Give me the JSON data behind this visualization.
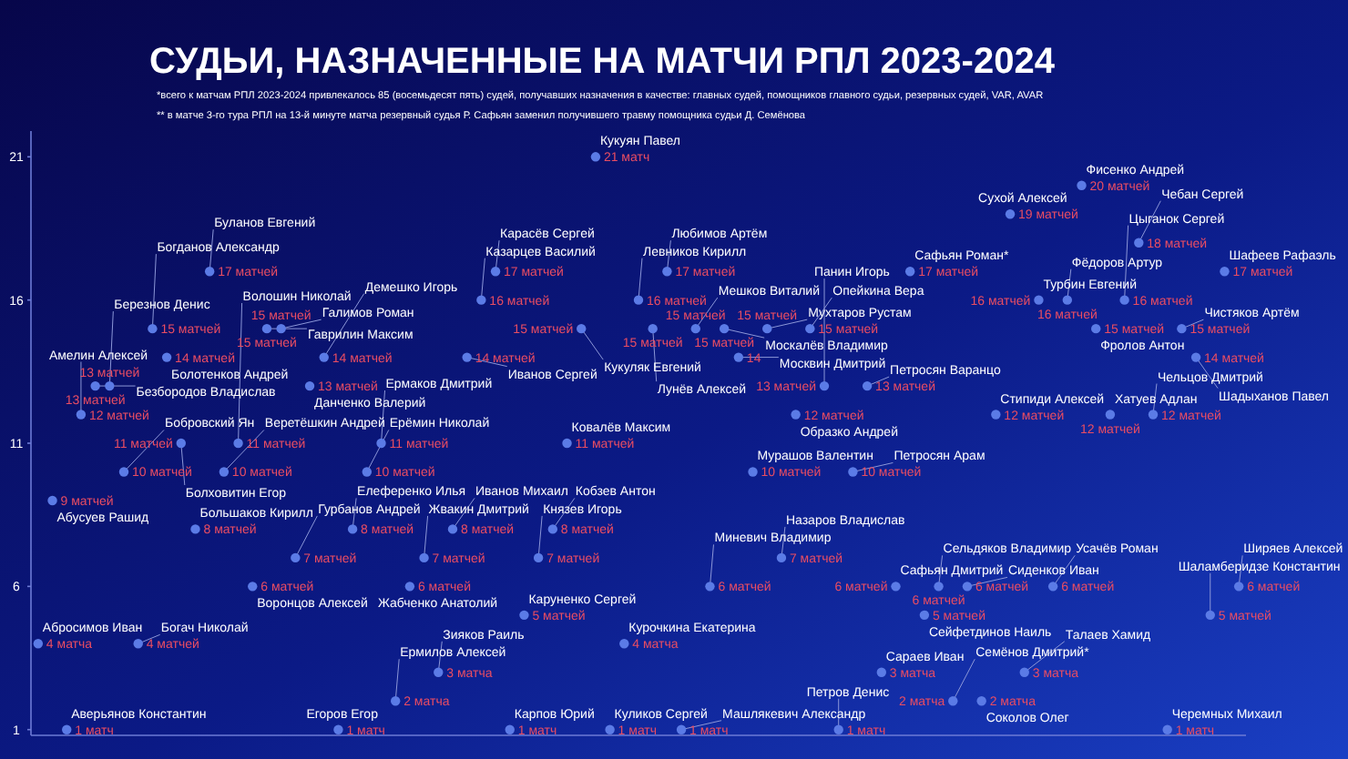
{
  "chart_data": {
    "type": "scatter",
    "title": "СУДЬИ, НАЗНАЧЕННЫЕ НА МАТЧИ РПЛ 2023-2024",
    "annotations": [
      "*всего к матчам РПЛ 2023-2024 привлекалось 85 (восемьдесят пять) судей, получавших назначения в качестве: главных судей, помощников главного судьи, резервных судей, VAR, AVAR",
      "** в матче 3-го тура РПЛ на 13-й минуте матча резервный судья Р. Сафьян заменил получившего травму помощника судьи Д. Семёнова",
      "Абросимов Иван",
      "Абусуев Рашид",
      "Аверьянов Константин",
      "Амелин Алексей",
      "Безбородов Владислав",
      "Березнов Денис",
      "Бобровский Ян",
      "Богач Николай",
      "Богданов Александр",
      "Болотенков Андрей",
      "Болховитин Егор",
      "Большаков Кирилл",
      "Буланов Евгений",
      "Веретёшкин Андрей",
      "Волошин Николай",
      "Воронцов Алексей",
      "Гаврилин Максим",
      "Галимов Роман",
      "Гурбанов Андрей",
      "Данченко Валерий",
      "Демешко Игорь",
      "Егоров Егор",
      "Елеференко Илья",
      "Ерёмин Николай",
      "Ермаков Дмитрий",
      "Ермилов Алексей",
      "Жабченко Анатолий",
      "Жвакин Дмитрий",
      "Зияков Раиль",
      "Иванов Михаил",
      "Иванов Сергей",
      "Казарцев Василий",
      "Карасёв Сергей",
      "Карпов Юрий",
      "Каруненко Сергей",
      "Князев Игорь",
      "Кобзев Антон",
      "Ковалёв Максим",
      "Кукуляк Евгений",
      "Кукуян Павел",
      "Куликов Сергей",
      "Курочкина Екатерина",
      "Левников Кирилл",
      "Лунёв Алексей",
      "Любимов Артём",
      "Машлякевич Александр",
      "Мешков Виталий",
      "Миневич Владимир",
      "Москалёв Владимир",
      "Москвин Дмитрий",
      "Мурашов Валентин",
      "Мухтаров Рустам",
      "Назаров Владислав",
      "Образко Андрей",
      "Опейкина Вера",
      "Панин Игорь",
      "Петров Денис",
      "Петросян Арам",
      "Петросян Варанцо",
      "Сараев Иван",
      "Сафьян Дмитрий",
      "Сафьян Роман*",
      "Сейфетдинов Наиль",
      "Сельдяков Владимир",
      "Семёнов Дмитрий*",
      "Сиденков Иван",
      "Соколов Олег",
      "Стипиди Алексей",
      "Сухой Алексей",
      "Талаев Хамид",
      "Турбин Евгений",
      "Усачёв Роман",
      "Фёдоров Артур",
      "Фисенко Андрей",
      "Фролов Антон",
      "Хатуев Адлан",
      "Цыганок Сергей",
      "Чебан Сергей",
      "Чельцов Дмитрий",
      "Черемных Михаил",
      "Чистяков Артём",
      "Шадыханов Павел",
      "Шаламберидзе Константин",
      "Шафеев Рафаэль",
      "Ширяев Алексей"
    ],
    "categories": [
      null,
      null,
      null,
      null,
      null,
      null,
      null,
      null,
      null,
      null,
      null,
      null,
      null,
      null,
      null,
      null,
      null,
      null,
      null,
      null,
      null,
      null,
      null,
      null,
      null,
      null,
      null,
      null,
      null,
      null,
      null,
      null,
      null,
      null,
      null,
      null,
      null,
      null,
      null,
      null,
      null,
      null,
      null,
      null,
      null,
      null,
      null,
      null,
      null,
      null,
      null,
      null,
      null,
      null,
      null,
      null,
      null,
      null,
      null,
      null,
      null,
      null,
      null,
      null,
      null,
      null,
      null,
      null,
      null,
      null,
      null,
      null,
      null,
      null,
      null,
      null,
      null,
      null,
      null,
      null,
      null,
      null,
      null,
      null,
      null
    ],
    "values": [
      4,
      9,
      1,
      12,
      13,
      13,
      10,
      4,
      15,
      14,
      11,
      8,
      17,
      10,
      11,
      6,
      15,
      15,
      7,
      13,
      14,
      1,
      8,
      10,
      11,
      2,
      6,
      7,
      3,
      8,
      14,
      16,
      17,
      1,
      5,
      7,
      8,
      11,
      15,
      21,
      1,
      4,
      16,
      15,
      17,
      1,
      15,
      6,
      15,
      14,
      10,
      15,
      7,
      12,
      15,
      13,
      1,
      10,
      13,
      3,
      6,
      17,
      5,
      6,
      2,
      6,
      2,
      12,
      19,
      3,
      16,
      6,
      16,
      20,
      15,
      12,
      16,
      18,
      12,
      1,
      15,
      14,
      5,
      17,
      6
    ],
    "value_labels": [
      "4 матча",
      "9 матчей",
      "1 матч",
      "12 матчей",
      "13 матчей",
      "13 матчей",
      "10 матчей",
      "4 матчей",
      "15 матчей",
      "14 матчей",
      "11 матчей",
      "8 матчей",
      "17 матчей",
      "10 матчей",
      "11 матчей",
      "6 матчей",
      "15 матчей",
      "15 матчей",
      "7 матчей",
      "13 матчей",
      "14 матчей",
      "1 матч",
      "8 матчей",
      "10 матчей",
      "11 матчей",
      "2 матча",
      "6 матчей",
      "7 матчей",
      "3 матча",
      "8 матчей",
      "14 матчей",
      "16 матчей",
      "17 матчей",
      "1 матч",
      "5 матчей",
      "7 матчей",
      "8 матчей",
      "11 матчей",
      "15 матчей",
      "21 матч",
      "1 матч",
      "4 матча",
      "16 матчей",
      "15 матчей",
      "17 матчей",
      "1 матч",
      "15 матчей",
      "6 матчей",
      "15 матчей",
      "14",
      "10 матчей",
      "15 матчей",
      "7 матчей",
      "12 матчей",
      "15 матчей",
      "13 матчей",
      "1 матч",
      "10 матчей",
      "13 матчей",
      "3 матча",
      "6 матчей",
      "17 матчей",
      "5 матчей",
      "6 матчей",
      "2 матча",
      "6 матчей",
      "2 матча",
      "12 матчей",
      "19 матчей",
      "3 матча",
      "16 матчей",
      "6 матчей",
      "16 матчей",
      "20 матчей",
      "15 матчей",
      "12 матчей",
      "16 матчей",
      "18 матчей",
      "12 матчей",
      "1 матч",
      "15 матчей",
      "14 матчей",
      "5 матчей",
      "17 матчей",
      "6 матчей"
    ],
    "color": "#5b7be6",
    "marker": "circle",
    "ylim": [
      0.8,
      21.9
    ],
    "yticks": [
      1,
      6,
      11,
      16,
      21
    ]
  }
}
